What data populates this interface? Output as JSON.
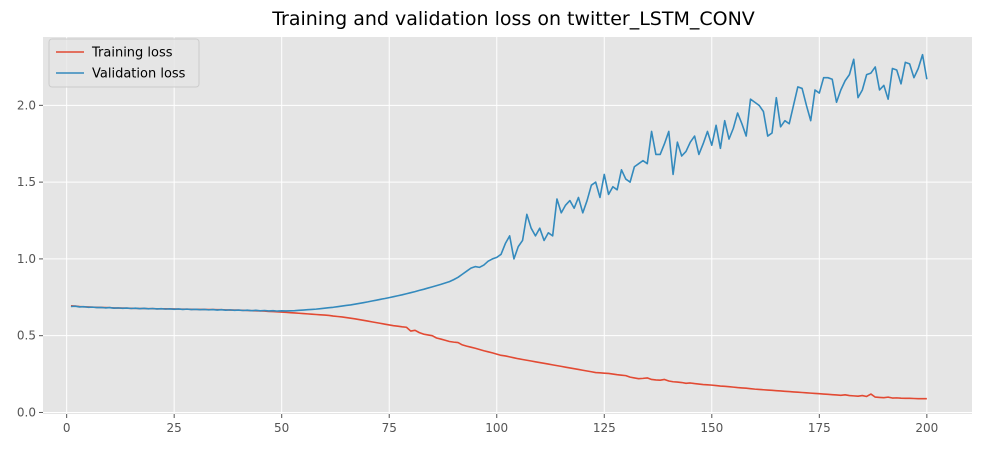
{
  "chart_data": {
    "type": "line",
    "title": "Training and validation loss on twitter_LSTM_CONV",
    "xlabel": "",
    "ylabel": "",
    "xlim": [
      -5.5,
      210.5
    ],
    "ylim": [
      -0.01,
      2.445
    ],
    "xticks": [
      0,
      25,
      50,
      75,
      100,
      125,
      150,
      175,
      200
    ],
    "yticks": [
      0.0,
      0.5,
      1.0,
      1.5,
      2.0
    ],
    "xtick_labels": [
      "0",
      "25",
      "50",
      "75",
      "100",
      "125",
      "150",
      "175",
      "200"
    ],
    "ytick_labels": [
      "0.0",
      "0.5",
      "1.0",
      "1.5",
      "2.0"
    ],
    "grid": true,
    "background": "#e5e5e5",
    "legend_position": "top-left",
    "x": [
      1,
      2,
      3,
      4,
      5,
      6,
      7,
      8,
      9,
      10,
      11,
      12,
      13,
      14,
      15,
      16,
      17,
      18,
      19,
      20,
      21,
      22,
      23,
      24,
      25,
      26,
      27,
      28,
      29,
      30,
      31,
      32,
      33,
      34,
      35,
      36,
      37,
      38,
      39,
      40,
      41,
      42,
      43,
      44,
      45,
      46,
      47,
      48,
      49,
      50,
      51,
      52,
      53,
      54,
      55,
      56,
      57,
      58,
      59,
      60,
      61,
      62,
      63,
      64,
      65,
      66,
      67,
      68,
      69,
      70,
      71,
      72,
      73,
      74,
      75,
      76,
      77,
      78,
      79,
      80,
      81,
      82,
      83,
      84,
      85,
      86,
      87,
      88,
      89,
      90,
      91,
      92,
      93,
      94,
      95,
      96,
      97,
      98,
      99,
      100,
      101,
      102,
      103,
      104,
      105,
      106,
      107,
      108,
      109,
      110,
      111,
      112,
      113,
      114,
      115,
      116,
      117,
      118,
      119,
      120,
      121,
      122,
      123,
      124,
      125,
      126,
      127,
      128,
      129,
      130,
      131,
      132,
      133,
      134,
      135,
      136,
      137,
      138,
      139,
      140,
      141,
      142,
      143,
      144,
      145,
      146,
      147,
      148,
      149,
      150,
      151,
      152,
      153,
      154,
      155,
      156,
      157,
      158,
      159,
      160,
      161,
      162,
      163,
      164,
      165,
      166,
      167,
      168,
      169,
      170,
      171,
      172,
      173,
      174,
      175,
      176,
      177,
      178,
      179,
      180,
      181,
      182,
      183,
      184,
      185,
      186,
      187,
      188,
      189,
      190,
      191,
      192,
      193,
      194,
      195,
      196,
      197,
      198,
      199,
      200
    ],
    "series": [
      {
        "name": "Training loss",
        "color": "#e24a33",
        "values": [
          0.695,
          0.693,
          0.69,
          0.688,
          0.687,
          0.686,
          0.685,
          0.684,
          0.683,
          0.682,
          0.681,
          0.68,
          0.68,
          0.679,
          0.678,
          0.678,
          0.677,
          0.677,
          0.676,
          0.676,
          0.675,
          0.675,
          0.675,
          0.674,
          0.674,
          0.673,
          0.673,
          0.673,
          0.672,
          0.672,
          0.671,
          0.671,
          0.67,
          0.67,
          0.669,
          0.669,
          0.668,
          0.667,
          0.667,
          0.666,
          0.665,
          0.664,
          0.663,
          0.662,
          0.661,
          0.66,
          0.658,
          0.657,
          0.655,
          0.654,
          0.652,
          0.65,
          0.648,
          0.646,
          0.644,
          0.642,
          0.64,
          0.638,
          0.636,
          0.634,
          0.632,
          0.628,
          0.625,
          0.622,
          0.618,
          0.614,
          0.61,
          0.605,
          0.6,
          0.595,
          0.59,
          0.585,
          0.58,
          0.575,
          0.57,
          0.565,
          0.562,
          0.558,
          0.555,
          0.53,
          0.535,
          0.52,
          0.51,
          0.505,
          0.5,
          0.485,
          0.478,
          0.47,
          0.462,
          0.458,
          0.455,
          0.44,
          0.432,
          0.425,
          0.418,
          0.41,
          0.402,
          0.395,
          0.388,
          0.38,
          0.372,
          0.368,
          0.362,
          0.356,
          0.35,
          0.345,
          0.34,
          0.335,
          0.33,
          0.325,
          0.32,
          0.315,
          0.31,
          0.305,
          0.3,
          0.295,
          0.29,
          0.285,
          0.28,
          0.275,
          0.27,
          0.265,
          0.26,
          0.258,
          0.256,
          0.254,
          0.25,
          0.246,
          0.243,
          0.24,
          0.23,
          0.225,
          0.22,
          0.222,
          0.225,
          0.215,
          0.212,
          0.21,
          0.215,
          0.205,
          0.2,
          0.198,
          0.195,
          0.19,
          0.192,
          0.188,
          0.185,
          0.182,
          0.18,
          0.178,
          0.175,
          0.172,
          0.17,
          0.168,
          0.165,
          0.162,
          0.16,
          0.158,
          0.155,
          0.152,
          0.15,
          0.148,
          0.146,
          0.144,
          0.142,
          0.14,
          0.138,
          0.136,
          0.134,
          0.132,
          0.13,
          0.128,
          0.126,
          0.124,
          0.122,
          0.12,
          0.118,
          0.116,
          0.114,
          0.112,
          0.115,
          0.11,
          0.108,
          0.106,
          0.11,
          0.104,
          0.12,
          0.1,
          0.098,
          0.096,
          0.1,
          0.094,
          0.095,
          0.093,
          0.092,
          0.092,
          0.091,
          0.09,
          0.09,
          0.09
        ]
      },
      {
        "name": "Validation loss",
        "color": "#348abd",
        "values": [
          0.69,
          0.692,
          0.687,
          0.689,
          0.685,
          0.686,
          0.683,
          0.684,
          0.681,
          0.683,
          0.679,
          0.681,
          0.678,
          0.68,
          0.677,
          0.679,
          0.676,
          0.678,
          0.675,
          0.677,
          0.674,
          0.676,
          0.673,
          0.675,
          0.672,
          0.674,
          0.671,
          0.673,
          0.67,
          0.672,
          0.669,
          0.671,
          0.668,
          0.67,
          0.667,
          0.669,
          0.666,
          0.668,
          0.665,
          0.667,
          0.664,
          0.666,
          0.663,
          0.665,
          0.662,
          0.664,
          0.661,
          0.663,
          0.66,
          0.662,
          0.661,
          0.662,
          0.663,
          0.665,
          0.667,
          0.669,
          0.671,
          0.673,
          0.676,
          0.679,
          0.682,
          0.685,
          0.689,
          0.693,
          0.697,
          0.7,
          0.705,
          0.71,
          0.715,
          0.72,
          0.726,
          0.731,
          0.737,
          0.742,
          0.748,
          0.754,
          0.76,
          0.766,
          0.773,
          0.78,
          0.787,
          0.795,
          0.802,
          0.81,
          0.818,
          0.826,
          0.834,
          0.843,
          0.852,
          0.865,
          0.88,
          0.9,
          0.92,
          0.94,
          0.95,
          0.945,
          0.96,
          0.985,
          1.0,
          1.01,
          1.03,
          1.1,
          1.15,
          1.0,
          1.08,
          1.12,
          1.29,
          1.2,
          1.15,
          1.2,
          1.12,
          1.17,
          1.15,
          1.39,
          1.3,
          1.35,
          1.38,
          1.33,
          1.4,
          1.3,
          1.38,
          1.48,
          1.5,
          1.4,
          1.55,
          1.42,
          1.47,
          1.45,
          1.58,
          1.52,
          1.5,
          1.6,
          1.62,
          1.64,
          1.62,
          1.83,
          1.68,
          1.68,
          1.75,
          1.83,
          1.55,
          1.76,
          1.67,
          1.7,
          1.76,
          1.8,
          1.68,
          1.75,
          1.83,
          1.74,
          1.87,
          1.72,
          1.9,
          1.78,
          1.85,
          1.95,
          1.88,
          1.8,
          2.04,
          2.02,
          2.0,
          1.96,
          1.8,
          1.82,
          2.05,
          1.86,
          1.9,
          1.88,
          2.0,
          2.12,
          2.11,
          2.0,
          1.9,
          2.1,
          2.08,
          2.18,
          2.18,
          2.17,
          2.02,
          2.1,
          2.16,
          2.2,
          2.3,
          2.05,
          2.1,
          2.2,
          2.21,
          2.25,
          2.1,
          2.13,
          2.04,
          2.24,
          2.23,
          2.14,
          2.28,
          2.27,
          2.18,
          2.24,
          2.33,
          2.17
        ]
      }
    ]
  }
}
